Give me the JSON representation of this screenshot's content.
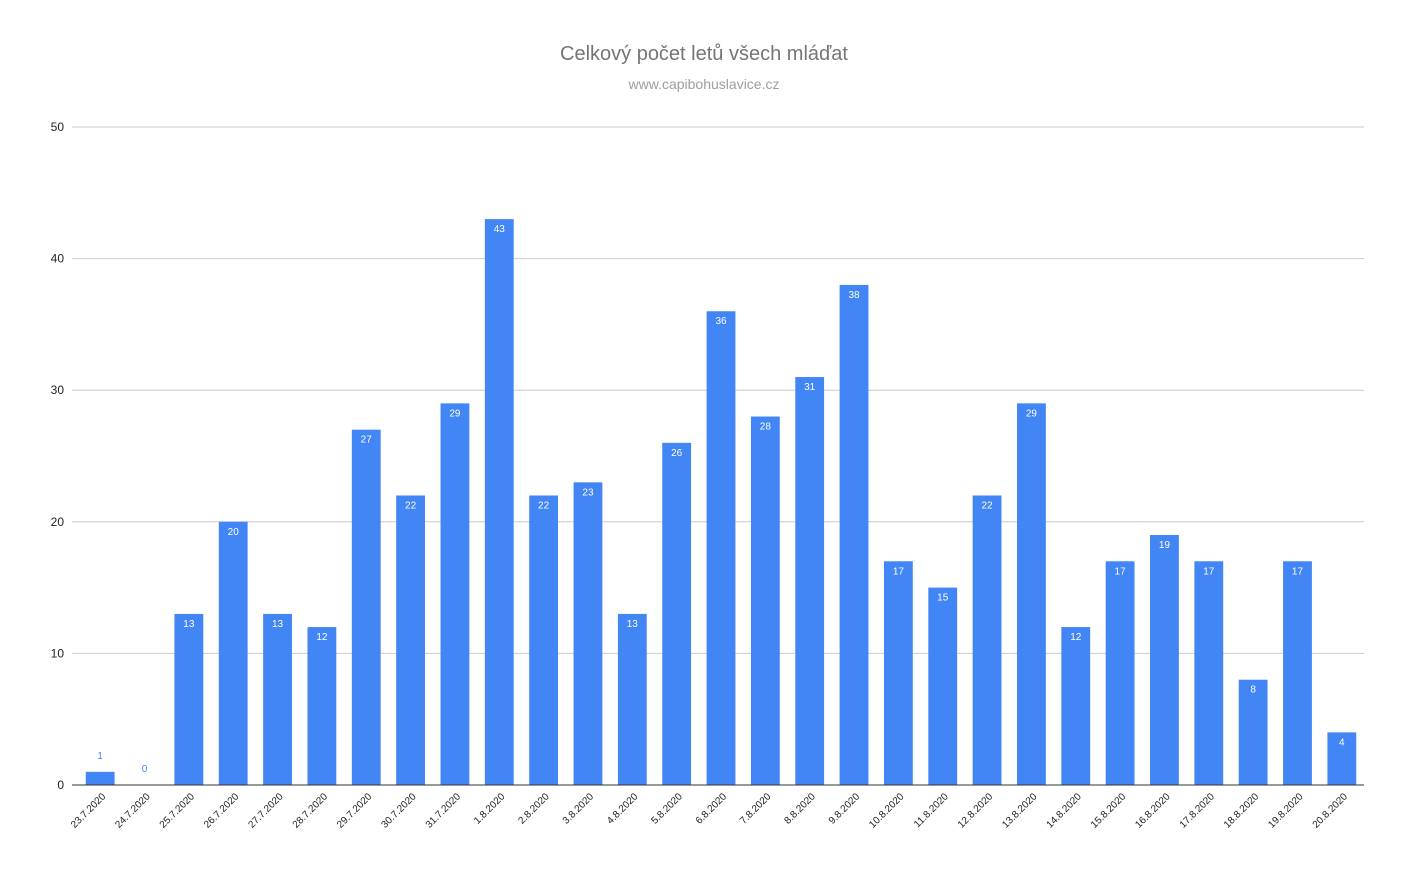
{
  "chart_data": {
    "type": "bar",
    "title": "Celkový počet letů všech mláďat",
    "subtitle": "www.capibohuslavice.cz",
    "xlabel": "",
    "ylabel": "",
    "ylim": [
      0,
      50
    ],
    "yticks": [
      0,
      10,
      20,
      30,
      40,
      50
    ],
    "grid": true,
    "legend": "none",
    "bar_color": "#4285f4",
    "categories": [
      "23.7.2020",
      "24.7.2020",
      "25.7.2020",
      "26.7.2020",
      "27.7.2020",
      "28.7.2020",
      "29.7.2020",
      "30.7.2020",
      "31.7.2020",
      "1.8.2020",
      "2.8.2020",
      "3.8.2020",
      "4.8.2020",
      "5.8.2020",
      "6.8.2020",
      "7.8.2020",
      "8.8.2020",
      "9.8.2020",
      "10.8.2020",
      "11.8.2020",
      "12.8.2020",
      "13.8.2020",
      "14.8.2020",
      "15.8.2020",
      "16.8.2020",
      "17.8.2020",
      "18.8.2020",
      "19.8.2020",
      "20.8.2020"
    ],
    "values": [
      1,
      0,
      13,
      20,
      13,
      12,
      27,
      22,
      29,
      43,
      22,
      23,
      13,
      26,
      36,
      28,
      31,
      38,
      17,
      15,
      22,
      29,
      12,
      17,
      19,
      17,
      8,
      17,
      4
    ]
  }
}
